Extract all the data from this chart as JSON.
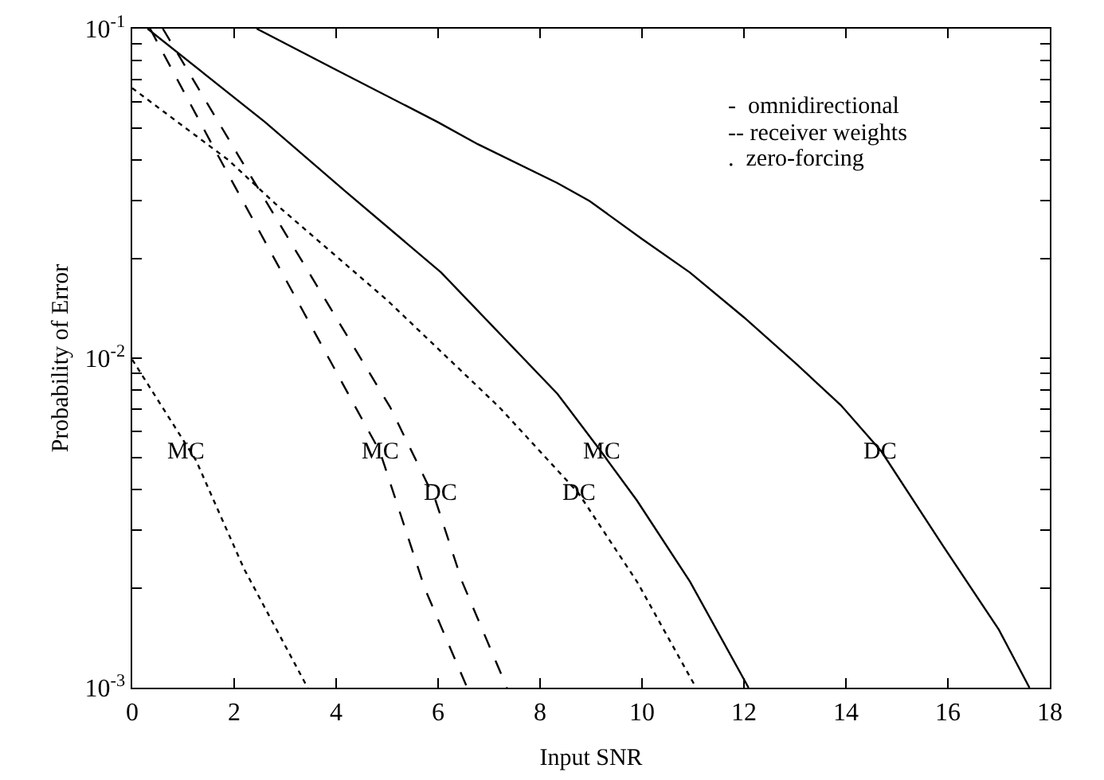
{
  "chart_data": {
    "type": "line",
    "xlabel": "Input SNR",
    "ylabel": "Probability of Error",
    "log": "y",
    "grid": false,
    "xlim": [
      0,
      18
    ],
    "xticks": [
      0,
      2,
      4,
      6,
      8,
      10,
      12,
      14,
      16,
      18
    ],
    "ylim": [
      0.001,
      0.1
    ],
    "yticks": [
      {
        "value": 0.001,
        "label": "10$^{-3}$"
      },
      {
        "value": 0.002,
        "label": null
      },
      {
        "value": 0.003,
        "label": null
      },
      {
        "value": 0.004,
        "label": null
      },
      {
        "value": 0.005,
        "label": null
      },
      {
        "value": 0.006,
        "label": null
      },
      {
        "value": 0.007,
        "label": null
      },
      {
        "value": 0.008,
        "label": null
      },
      {
        "value": 0.009,
        "label": null
      },
      {
        "value": 0.01,
        "label": "10$^{-2}$"
      },
      {
        "value": 0.02,
        "label": null
      },
      {
        "value": 0.03,
        "label": null
      },
      {
        "value": 0.04,
        "label": null
      },
      {
        "value": 0.05,
        "label": null
      },
      {
        "value": 0.06,
        "label": null
      },
      {
        "value": 0.07,
        "label": null
      },
      {
        "value": 0.08,
        "label": null
      },
      {
        "value": 0.09,
        "label": null
      },
      {
        "value": 0.1,
        "label": "10$^{-1}$"
      }
    ],
    "marker": "none",
    "series": [
      {
        "color": "#000000",
        "line_style": "solid",
        "x": [
          2.44,
          4,
          6,
          6.78,
          8.34,
          8.97,
          10,
          10.94,
          12,
          13.03,
          13.9,
          14.7,
          15.9,
          17,
          17.6
        ],
        "values": [
          0.1,
          0.075,
          0.052,
          0.0446,
          0.034,
          0.03,
          0.023,
          0.0182,
          0.0133,
          0.0096,
          0.0072,
          0.0052,
          0.0027,
          0.0015,
          0.001
        ]
      },
      {
        "color": "#000000",
        "line_style": "solid",
        "x": [
          0.3,
          2.61,
          4.19,
          6.06,
          8.34,
          9.2,
          9.9,
          10.94,
          12.09
        ],
        "values": [
          0.1,
          0.052,
          0.032,
          0.0182,
          0.0078,
          0.0052,
          0.0037,
          0.0021,
          0.001
        ]
      },
      {
        "color": "#000000",
        "line_style": "dashed",
        "x": [
          0.35,
          1.69,
          4.38,
          4.86,
          5.74,
          6.57
        ],
        "values": [
          0.1,
          0.041,
          0.0071,
          0.0052,
          0.002,
          0.001
        ]
      },
      {
        "color": "#000000",
        "line_style": "dashed",
        "x": [
          0.6,
          2.09,
          5.06,
          5.95,
          6.47,
          7.35
        ],
        "values": [
          0.1,
          0.041,
          0.0071,
          0.0037,
          0.0021,
          0.001
        ]
      },
      {
        "color": "#000000",
        "line_style": "dotted",
        "x": [
          0,
          1.88,
          2.81,
          5,
          7.2,
          8.75,
          9.9,
          11.06
        ],
        "values": [
          0.066,
          0.04,
          0.0294,
          0.015,
          0.0071,
          0.0039,
          0.0021,
          0.001
        ]
      },
      {
        "color": "#000000",
        "line_style": "dotted",
        "x": [
          0,
          1.25,
          2.19,
          3.44
        ],
        "values": [
          0.0099,
          0.0049,
          0.0023,
          0.001
        ]
      }
    ],
    "annotations": [
      "-  omnidirectional",
      "-- receiver weights",
      ".  zero-forcing",
      {
        "text": "MC",
        "x": 1.06,
        "y": 0.0052
      },
      {
        "text": "MC",
        "x": 4.86,
        "y": 0.0052
      },
      {
        "text": "DC",
        "x": 6.05,
        "y": 0.0039
      },
      {
        "text": "DC",
        "x": 8.75,
        "y": 0.0039
      },
      {
        "text": "MC",
        "x": 9.2,
        "y": 0.0052
      },
      {
        "text": "DC",
        "x": 14.66,
        "y": 0.0052
      }
    ]
  }
}
